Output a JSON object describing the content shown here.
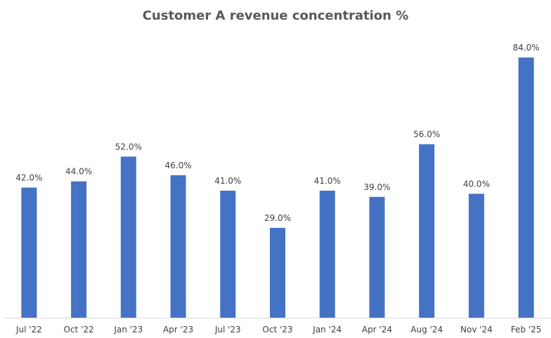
{
  "chart_data": {
    "type": "bar",
    "title": "Customer A revenue concentration %",
    "xlabel": "",
    "ylabel": "",
    "categories": [
      "Jul '22",
      "Oct '22",
      "Jan '23",
      "Apr '23",
      "Jul '23",
      "Oct '23",
      "Jan '24",
      "Apr '24",
      "Aug '24",
      "Nov '24",
      "Feb '25"
    ],
    "values": [
      42.0,
      44.0,
      52.0,
      46.0,
      41.0,
      29.0,
      41.0,
      39.0,
      56.0,
      40.0,
      84.0
    ],
    "data_labels": [
      "42.0%",
      "44.0%",
      "52.0%",
      "46.0%",
      "41.0%",
      "29.0%",
      "41.0%",
      "39.0%",
      "56.0%",
      "40.0%",
      "84.0%"
    ],
    "ylim": [
      0,
      84
    ],
    "grid": false,
    "legend": "none",
    "colors": {
      "bar": "#4472C4",
      "axis": "#D9D9D9",
      "text": "#404040",
      "title": "#595959"
    }
  }
}
